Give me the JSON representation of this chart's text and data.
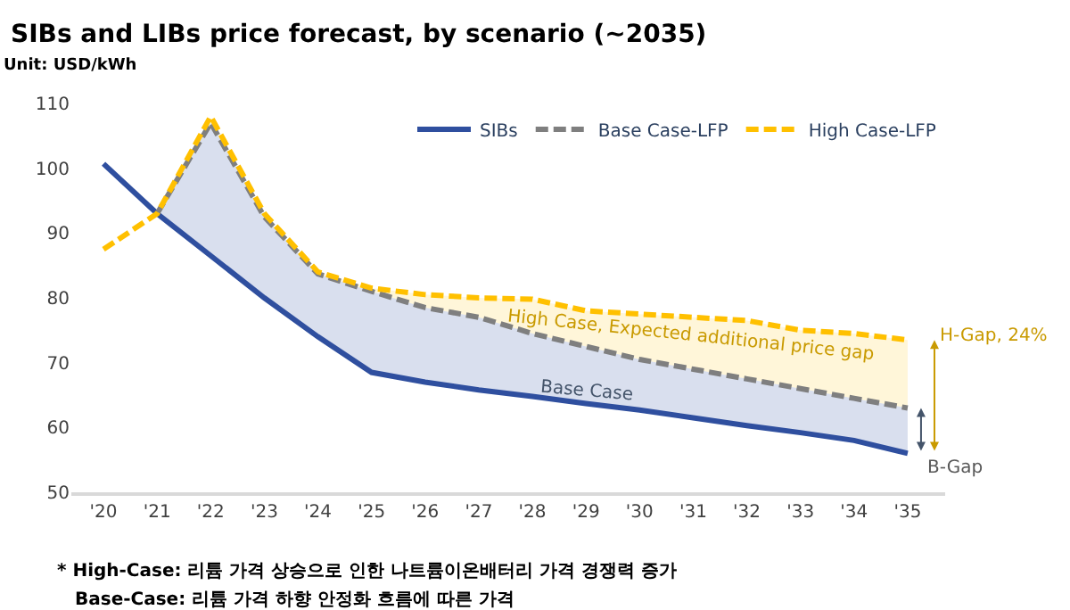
{
  "chart_data": {
    "type": "line",
    "title": "SIBs and LIBs price forecast, by scenario (~2035)",
    "subtitle": "Unit: USD/kWh",
    "categories": [
      "'20",
      "'21",
      "'22",
      "'23",
      "'24",
      "'25",
      "'26",
      "'27",
      "'28",
      "'29",
      "'30",
      "'31",
      "'32",
      "'33",
      "'34",
      "'35"
    ],
    "series": [
      {
        "name": "SIBs",
        "color": "#2f4f9f",
        "line_style": "solid",
        "values": [
          100.7,
          93,
          86.5,
          80,
          74,
          68.5,
          67,
          65.8,
          64.8,
          63.7,
          62.7,
          61.5,
          60.3,
          59.2,
          58,
          56
        ],
        "lower": [
          null,
          93,
          86.5,
          80,
          74,
          68.5,
          67,
          65.8,
          64.8,
          63.7,
          62.7,
          61.5,
          60.3,
          59.2,
          58,
          56
        ],
        "upper": [
          null,
          93,
          107,
          92.5,
          83.7,
          81,
          78.5,
          77,
          74.5,
          72.5,
          70.5,
          69,
          67.5,
          66,
          64.5,
          63
        ]
      },
      {
        "name": "Base Case-LFP",
        "color": "#7f7f7f",
        "line_style": "dashed",
        "values": [
          null,
          93,
          107,
          92.5,
          83.7,
          81,
          78.5,
          77,
          74.5,
          72.5,
          70.5,
          69,
          67.5,
          66,
          64.5,
          63
        ],
        "lower": [
          null,
          null,
          null,
          null,
          83.7,
          81,
          78.5,
          77,
          74.5,
          72.5,
          70.5,
          69,
          67.5,
          66,
          64.5,
          63
        ],
        "upper": [
          null,
          null,
          null,
          null,
          84,
          81.5,
          80.5,
          80,
          79.8,
          78,
          77.5,
          77,
          76.5,
          75,
          74.5,
          73.5
        ]
      },
      {
        "name": "High Case-LFP",
        "color": "#ffc000",
        "line_style": "dashed",
        "values": [
          87.5,
          93,
          108,
          93,
          84,
          81.5,
          80.5,
          80,
          79.8,
          78,
          77.5,
          77,
          76.5,
          75,
          74.5,
          73.5
        ]
      }
    ],
    "ylim": [
      50,
      110
    ],
    "yticks": [
      50,
      60,
      70,
      80,
      90,
      100,
      110
    ],
    "legend": "top right",
    "marker": "none",
    "annotations": [
      "High Case, Expected additional price gap",
      {
        "text": "Base Case",
        "x": "'29",
        "y": 65.5
      },
      {
        "text": "H-Gap, 24%",
        "x": "'35",
        "y": 74
      },
      "B-Gap",
      "* High-Case: 리튬 가격 상승으로 인한 나트륨이온배터리 가격 경쟁력 증가",
      "Base-Case: 리튬 가격 하향 안정화 흐름에 따른 가격"
    ]
  }
}
